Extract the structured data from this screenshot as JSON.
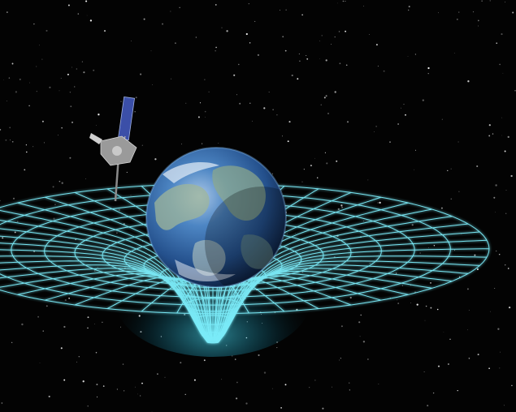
{
  "scene": {
    "subject": "earth-spacetime-curvature",
    "elements": [
      "starfield",
      "spacetime-grid",
      "earth",
      "satellite"
    ],
    "colors": {
      "background": "#030303",
      "grid": "#7ff2ff",
      "grid_glow": "#2fd0ff",
      "earth_ocean": "#3f78b8",
      "earth_land": "#8fa98a",
      "satellite_panel": "#3b4fa8",
      "satellite_body": "#9a9a9a"
    }
  }
}
